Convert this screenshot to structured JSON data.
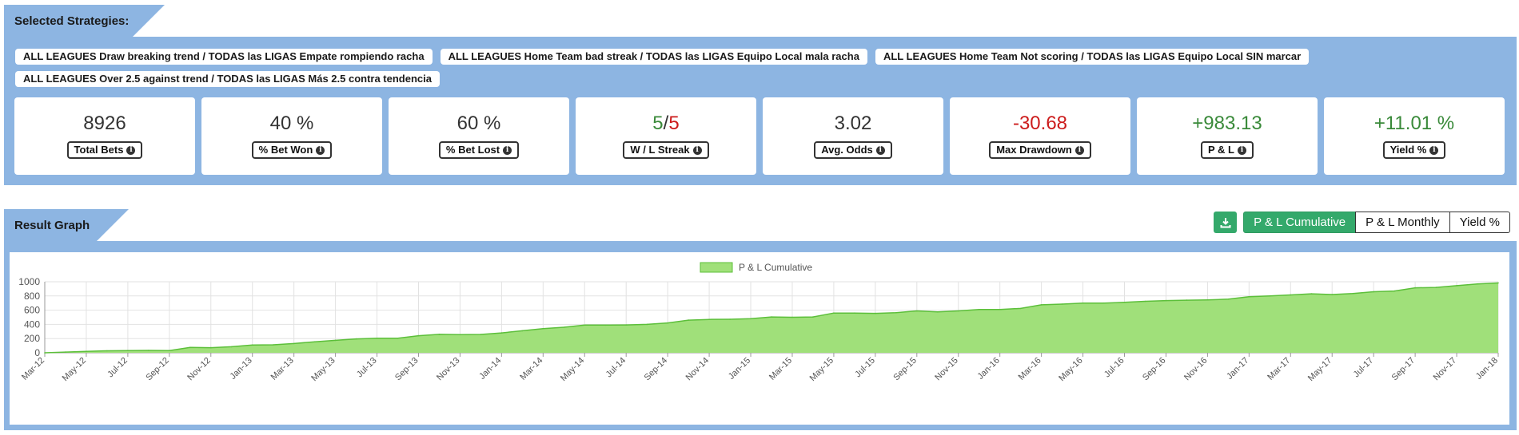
{
  "selected_strategies": {
    "title": "Selected Strategies:",
    "tags": [
      "ALL LEAGUES Draw breaking trend / TODAS las LIGAS Empate rompiendo racha",
      "ALL LEAGUES Home Team bad streak / TODAS las LIGAS Equipo Local mala racha",
      "ALL LEAGUES Home Team Not scoring / TODAS las LIGAS Equipo Local SIN marcar",
      "ALL LEAGUES Over 2.5 against trend / TODAS las LIGAS Más 2.5 contra tendencia"
    ]
  },
  "stats": {
    "total_bets": {
      "value": "8926",
      "label": "Total Bets"
    },
    "bet_won": {
      "value": "40 %",
      "label": "% Bet Won"
    },
    "bet_lost": {
      "value": "60 %",
      "label": "% Bet Lost"
    },
    "streak": {
      "win": "5",
      "sep": "/",
      "loss": "5",
      "label": "W / L Streak"
    },
    "avg_odds": {
      "value": "3.02",
      "label": "Avg. Odds"
    },
    "max_drawdown": {
      "value": "-30.68",
      "label": "Max Drawdown"
    },
    "pl": {
      "value": "+983.13",
      "label": "P & L"
    },
    "yield": {
      "value": "+11.01 %",
      "label": "Yield %"
    }
  },
  "result_graph": {
    "title": "Result Graph",
    "buttons": [
      "P & L Cumulative",
      "P & L Monthly",
      "Yield %"
    ],
    "active_button": "P & L Cumulative",
    "download_icon": "download-icon"
  },
  "colors": {
    "panel": "#8db5e2",
    "accent_green": "#34a96b",
    "fill": "#a0e07a",
    "line": "#5cbf3a",
    "positive": "#3a8a3a",
    "negative": "#cc1b1b"
  },
  "chart_data": {
    "type": "area",
    "legend": "P & L Cumulative",
    "legend_position": "top-center",
    "grid": true,
    "ylim": [
      0,
      1000
    ],
    "yticks": [
      0,
      200,
      400,
      600,
      800,
      1000
    ],
    "xticks": [
      "Mar-12",
      "May-12",
      "Jul-12",
      "Sep-12",
      "Nov-12",
      "Jan-13",
      "Mar-13",
      "May-13",
      "Jul-13",
      "Sep-13",
      "Nov-13",
      "Jan-14",
      "Mar-14",
      "May-14",
      "Jul-14",
      "Sep-14",
      "Nov-14",
      "Jan-15",
      "Mar-15",
      "May-15",
      "Jul-15",
      "Sep-15",
      "Nov-15",
      "Jan-16",
      "Mar-16",
      "May-16",
      "Jul-16",
      "Sep-16",
      "Nov-16",
      "Jan-17",
      "Mar-17",
      "May-17",
      "Jul-17",
      "Sep-17",
      "Nov-17",
      "Jan-18"
    ],
    "categories": [
      "Mar-12",
      "Apr-12",
      "May-12",
      "Jun-12",
      "Jul-12",
      "Aug-12",
      "Sep-12",
      "Oct-12",
      "Nov-12",
      "Dec-12",
      "Jan-13",
      "Feb-13",
      "Mar-13",
      "Apr-13",
      "May-13",
      "Jun-13",
      "Jul-13",
      "Aug-13",
      "Sep-13",
      "Oct-13",
      "Nov-13",
      "Dec-13",
      "Jan-14",
      "Feb-14",
      "Mar-14",
      "Apr-14",
      "May-14",
      "Jun-14",
      "Jul-14",
      "Aug-14",
      "Sep-14",
      "Oct-14",
      "Nov-14",
      "Dec-14",
      "Jan-15",
      "Feb-15",
      "Mar-15",
      "Apr-15",
      "May-15",
      "Jun-15",
      "Jul-15",
      "Aug-15",
      "Sep-15",
      "Oct-15",
      "Nov-15",
      "Dec-15",
      "Jan-16",
      "Feb-16",
      "Mar-16",
      "Apr-16",
      "May-16",
      "Jun-16",
      "Jul-16",
      "Aug-16",
      "Sep-16",
      "Oct-16",
      "Nov-16",
      "Dec-16",
      "Jan-17",
      "Feb-17",
      "Mar-17",
      "Apr-17",
      "May-17",
      "Jun-17",
      "Jul-17",
      "Aug-17",
      "Sep-17",
      "Oct-17",
      "Nov-17",
      "Dec-17",
      "Jan-18"
    ],
    "values": [
      0,
      10,
      20,
      28,
      32,
      34,
      32,
      75,
      72,
      85,
      110,
      112,
      130,
      155,
      175,
      195,
      205,
      205,
      240,
      260,
      255,
      258,
      280,
      310,
      340,
      360,
      390,
      390,
      392,
      400,
      420,
      460,
      470,
      472,
      480,
      505,
      500,
      505,
      560,
      560,
      555,
      565,
      590,
      575,
      590,
      610,
      610,
      625,
      675,
      685,
      700,
      700,
      710,
      725,
      735,
      740,
      745,
      755,
      790,
      800,
      815,
      830,
      820,
      835,
      860,
      870,
      915,
      920,
      945,
      970,
      983
    ]
  }
}
